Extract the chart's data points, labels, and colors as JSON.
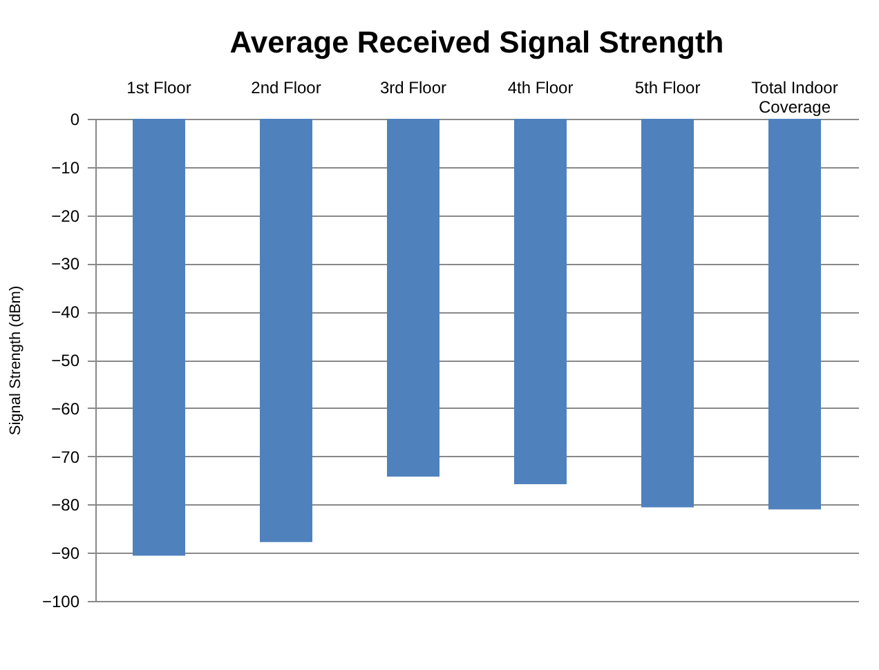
{
  "chart_data": {
    "type": "bar",
    "title": "Average Received Signal Strength",
    "ylabel": "Signal Strength (dBm)",
    "categories": [
      "1st Floor",
      "2nd Floor",
      "3rd Floor",
      "4th Floor",
      "5th Floor",
      "Total Indoor Coverage"
    ],
    "values": [
      -90.6,
      -87.8,
      -74.2,
      -75.8,
      -80.6,
      -81.0
    ],
    "color": "#4f81bd",
    "ylim": [
      -100,
      0
    ],
    "yticks": [
      -100,
      -90,
      -80,
      -70,
      -60,
      -50,
      -40,
      -30,
      -20,
      -10,
      0
    ],
    "grid": "y"
  }
}
